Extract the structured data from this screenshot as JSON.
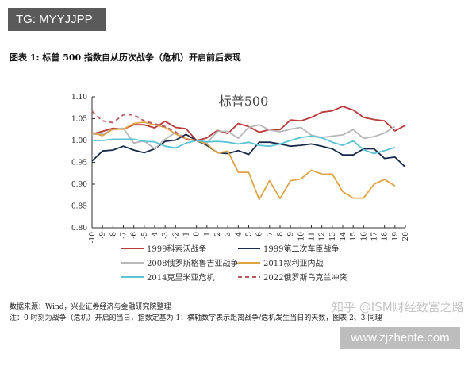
{
  "watermark_tg": "TG: MYYJJPP",
  "figure_title": "图表 1:   标普 500 指数自从历次战争（危机）开启前后表现",
  "source": "数据来源：Wind，兴业证券经济与金融研究院整理",
  "note": "注：0 时刻为战争（危机）开启的当日，指数定基为 1；横轴数字表示距离战争/危机发生当日的天数，图表 2、3 同理",
  "watermark_zhihu": "知乎 @ISM财经致富之路",
  "watermark_site": "www.zjzhente.com",
  "chart_data": {
    "type": "line",
    "title": "标普500",
    "xlabel": "",
    "ylabel": "",
    "x": [
      -10,
      -9,
      -8,
      -7,
      -6,
      -5,
      -4,
      -3,
      -2,
      -1,
      0,
      1,
      2,
      3,
      4,
      5,
      6,
      7,
      8,
      9,
      10,
      11,
      12,
      13,
      14,
      15,
      16,
      17,
      18,
      19,
      20
    ],
    "xlim": [
      -10,
      20
    ],
    "ylim": [
      0.8,
      1.1
    ],
    "yticks": [
      "0.80",
      "0.85",
      "0.90",
      "0.95",
      "1.00",
      "1.05",
      "1.10"
    ],
    "legend_position": "bottom",
    "series": [
      {
        "name": "1999科索沃战争",
        "color": "#b83a3a",
        "dash": false,
        "values": [
          1.015,
          1.021,
          1.028,
          1.026,
          1.036,
          1.036,
          1.029,
          1.044,
          1.03,
          1.027,
          1.0,
          1.006,
          1.023,
          1.016,
          1.039,
          1.032,
          1.019,
          1.025,
          1.025,
          1.047,
          1.045,
          1.053,
          1.065,
          1.068,
          1.078,
          1.07,
          1.053,
          1.048,
          1.045,
          1.022,
          1.035
        ]
      },
      {
        "name": "1999第二次车臣战争",
        "color": "#1a2a4a",
        "dash": false,
        "values": [
          0.953,
          0.976,
          0.978,
          0.987,
          0.978,
          0.972,
          0.981,
          0.998,
          1.001,
          1.014,
          1.0,
          0.989,
          0.972,
          0.97,
          0.977,
          0.968,
          0.996,
          0.996,
          0.992,
          0.987,
          0.989,
          0.992,
          0.987,
          0.981,
          0.967,
          0.967,
          0.981,
          0.981,
          0.959,
          0.962,
          0.939
        ]
      },
      {
        "name": "2008俄罗斯格鲁吉亚战争",
        "color": "#b8b8b8",
        "dash": false,
        "values": [
          1.014,
          1.015,
          1.025,
          1.028,
          0.994,
          0.999,
          0.981,
          1.003,
          1.018,
          1.003,
          1.0,
          0.994,
          1.021,
          1.021,
          1.005,
          1.03,
          1.036,
          1.024,
          1.02,
          1.026,
          1.03,
          1.012,
          1.007,
          1.01,
          1.013,
          1.025,
          1.005,
          1.009,
          1.017,
          1.032,
          null
        ]
      },
      {
        "name": "2011叙利亚内战",
        "color": "#e0a448",
        "dash": false,
        "values": [
          1.018,
          1.011,
          1.026,
          1.026,
          1.039,
          1.042,
          1.036,
          1.03,
          1.015,
          1.004,
          1.0,
          0.992,
          0.971,
          0.976,
          0.927,
          0.927,
          0.865,
          0.908,
          0.867,
          0.908,
          0.912,
          0.932,
          0.923,
          0.923,
          0.883,
          0.868,
          0.868,
          0.9,
          0.911,
          0.896,
          null
        ]
      },
      {
        "name": "2014克里米亚危机",
        "color": "#5cc4d4",
        "dash": false,
        "values": [
          1.0,
          1.0,
          1.003,
          1.003,
          1.003,
          0.998,
          0.997,
          0.987,
          0.983,
          0.994,
          1.0,
          0.997,
          0.998,
          0.996,
          0.992,
          0.996,
          0.989,
          0.987,
          0.992,
          1.0,
          1.007,
          1.01,
          1.006,
          0.996,
          0.989,
          0.999,
          0.979,
          0.97,
          0.977,
          0.984,
          null
        ]
      },
      {
        "name": "2022俄罗斯乌克兰冲突",
        "color": "#b85a62",
        "dash": true,
        "values": [
          1.067,
          1.045,
          1.041,
          1.059,
          1.059,
          1.045,
          1.038,
          1.032,
          1.02,
          1.002,
          1.0,
          null,
          null,
          null,
          null,
          null,
          null,
          null,
          null,
          null,
          null,
          null,
          null,
          null,
          null,
          null,
          null,
          null,
          null,
          null,
          null
        ]
      }
    ]
  }
}
